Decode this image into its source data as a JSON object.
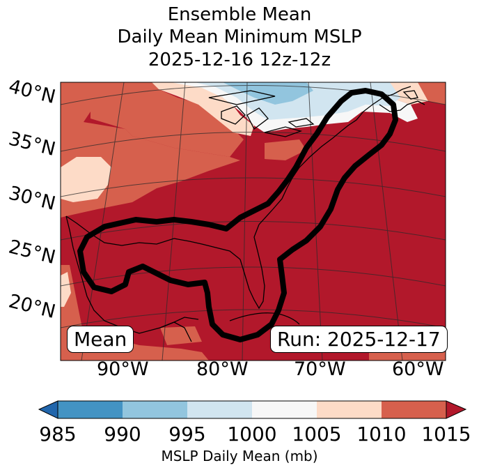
{
  "title": {
    "line1": "Ensemble Mean",
    "line2": "Daily Mean Minimum MSLP",
    "line3": "2025-12-16 12z-12z"
  },
  "map": {
    "lat_labels": [
      "40°N",
      "35°N",
      "30°N",
      "25°N",
      "20°N"
    ],
    "lon_labels": [
      "90°W",
      "80°W",
      "70°W",
      "60°W"
    ],
    "left_badge": "Mean",
    "run_badge": "Run: 2025-12-17",
    "region_outline": "black",
    "dominant_value_mb": ">1015"
  },
  "colorbar": {
    "ticks": [
      "985",
      "990",
      "995",
      "1000",
      "1005",
      "1010",
      "1015"
    ],
    "label": "MSLP Daily Mean (mb)",
    "bins": [
      {
        "range": "<985",
        "color": "#2166ac"
      },
      {
        "range": "985-990",
        "color": "#4393c3"
      },
      {
        "range": "990-995",
        "color": "#92c5de"
      },
      {
        "range": "995-1000",
        "color": "#d1e5f0"
      },
      {
        "range": "1000-1005",
        "color": "#f7f7f7"
      },
      {
        "range": "1005-1010",
        "color": "#fddbc7"
      },
      {
        "range": "1010-1015",
        "color": "#d6604d"
      },
      {
        "range": ">1015",
        "color": "#b2182b"
      }
    ]
  }
}
